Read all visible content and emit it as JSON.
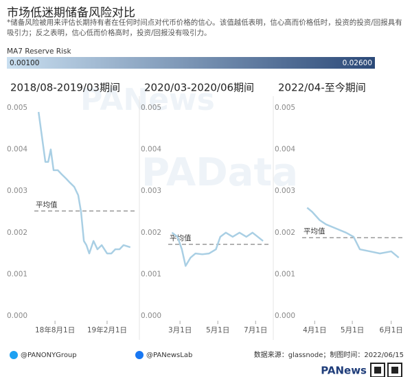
{
  "header": {
    "title": "市场低迷期储备风险对比",
    "subtitle": "*储备风险被用来评估长期持有者在任何时间点对代币价格的信心。该值越低表明，信心高而价格低时，投资的投资/回报具有吸引力；反之表明，信心低而价格高时，投资/回报没有吸引力。"
  },
  "color_legend": {
    "title": "MA7 Reserve Risk",
    "colors": [
      "#c9dff0",
      "#2b4978"
    ],
    "ticks": [
      {
        "value": 0.001,
        "label": "0.00100"
      },
      {
        "value": 0.026,
        "label": "0.02600"
      }
    ]
  },
  "watermarks": [
    "PANews",
    "PAData"
  ],
  "chart_data": [
    {
      "type": "line",
      "title": "2018/08-2019/03期间",
      "color": "#a9cfe4",
      "x": [
        "2018-06-04",
        "2018-06-18",
        "2018-06-28",
        "2018-07-08",
        "2018-07-17",
        "2018-07-27",
        "2018-08-11",
        "2018-08-25",
        "2018-09-09",
        "2018-09-23",
        "2018-10-08",
        "2018-10-22",
        "2018-11-01",
        "2018-11-11",
        "2018-11-20",
        "2018-11-30",
        "2018-12-15",
        "2018-12-29",
        "2019-01-13",
        "2019-02-01",
        "2019-02-16",
        "2019-03-02",
        "2019-03-17",
        "2019-03-31",
        "2019-04-24"
      ],
      "values": [
        0.0049,
        0.0042,
        0.0037,
        0.0037,
        0.004,
        0.0035,
        0.0035,
        0.0034,
        0.0033,
        0.0032,
        0.0031,
        0.0029,
        0.0025,
        0.0018,
        0.0017,
        0.0015,
        0.0018,
        0.0016,
        0.0017,
        0.0015,
        0.0015,
        0.0016,
        0.0016,
        0.0017,
        0.00165
      ],
      "mean": {
        "label": "平均值",
        "value": 0.00252
      },
      "xlim": [
        "2018-05-20",
        "2019-05-14"
      ],
      "xticks": [
        {
          "value": "2018-08-01",
          "label": "18年8月1日"
        },
        {
          "value": "2019-02-01",
          "label": "19年2月1日"
        }
      ],
      "ylim": [
        0,
        0.005
      ],
      "yticks": [
        {
          "value": 0,
          "label": "0.000"
        },
        0.001,
        0.002,
        0.003,
        0.004,
        0.005
      ]
    },
    {
      "type": "line",
      "title": "2020/03-2020/06期间",
      "color": "#a9cfe4",
      "x": [
        "2020-02-17",
        "2020-02-26",
        "2020-03-04",
        "2020-03-10",
        "2020-03-18",
        "2020-03-26",
        "2020-04-06",
        "2020-04-17",
        "2020-04-28",
        "2020-05-05",
        "2020-05-14",
        "2020-05-25",
        "2020-06-05",
        "2020-06-16",
        "2020-06-26",
        "2020-07-13"
      ],
      "values": [
        0.002,
        0.0019,
        0.0016,
        0.0012,
        0.0014,
        0.0015,
        0.00148,
        0.0015,
        0.0016,
        0.0019,
        0.002,
        0.0019,
        0.002,
        0.0019,
        0.002,
        0.0018
      ],
      "mean": {
        "label": "平均值",
        "value": 0.00172
      },
      "xlim": [
        "2020-02-11",
        "2020-07-24"
      ],
      "xticks": [
        {
          "value": "2020-03-01",
          "label": "3月1日"
        },
        {
          "value": "2020-05-01",
          "label": "5月1日"
        },
        {
          "value": "2020-07-01",
          "label": "7月1日"
        }
      ],
      "ylim": [
        0,
        0.005
      ],
      "yticks": [
        {
          "value": 0,
          "label": "0.000"
        },
        0.001,
        0.002,
        0.003,
        0.004,
        0.005
      ]
    },
    {
      "type": "line",
      "title": "2022/04-至今期间",
      "color": "#a9cfe4",
      "x": [
        "2022-03-26",
        "2022-03-30",
        "2022-04-05",
        "2022-04-10",
        "2022-04-18",
        "2022-04-26",
        "2022-05-02",
        "2022-05-07",
        "2022-05-15",
        "2022-05-23",
        "2022-06-01",
        "2022-06-07"
      ],
      "values": [
        0.0026,
        0.0025,
        0.0023,
        0.0022,
        0.0021,
        0.002,
        0.0019,
        0.0016,
        0.00155,
        0.0015,
        0.00155,
        0.0014
      ],
      "mean": {
        "label": "平均值",
        "value": 0.00188
      },
      "xlim": [
        "2022-03-22",
        "2022-06-11"
      ],
      "xticks": [
        {
          "value": "2022-04-01",
          "label": "4月1日"
        },
        {
          "value": "2022-05-01",
          "label": "5月1日"
        },
        {
          "value": "2022-06-01",
          "label": "6月1日"
        }
      ],
      "ylim": [
        0,
        0.005
      ],
      "yticks": [
        {
          "value": 0,
          "label": "0.000"
        },
        0.001,
        0.002,
        0.003,
        0.004,
        0.005
      ]
    }
  ],
  "footer": {
    "twitter": "@PANONYGroup",
    "facebook": "@PANewsLab",
    "source": "数据来源：glassnode；制图时间：2022/06/15",
    "logo": "PANews"
  }
}
